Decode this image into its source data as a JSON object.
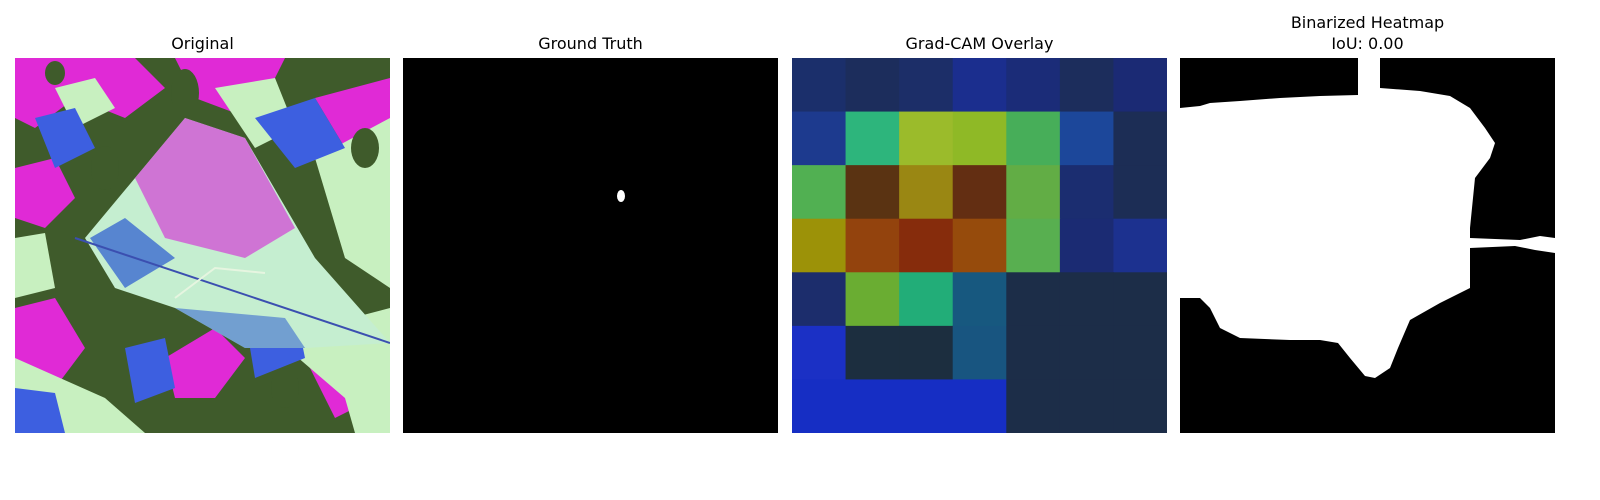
{
  "panels": [
    {
      "id": "original",
      "title": "Original"
    },
    {
      "id": "ground_truth",
      "title": "Ground Truth"
    },
    {
      "id": "gradcam",
      "title": "Grad-CAM Overlay",
      "grid_colors": [
        [
          "#1b2f6b",
          "#1c2d5c",
          "#1c2e68",
          "#1b2e8e",
          "#1b2c78",
          "#1c2d5c",
          "#1b2a74"
        ],
        [
          "#1d3a8e",
          "#2db57c",
          "#9bbb2b",
          "#8fb926",
          "#47ae59",
          "#1c479a",
          "#1c2d55"
        ],
        [
          "#51b052",
          "#5a3312",
          "#9a8713",
          "#632e12",
          "#62ad45",
          "#1b2d70",
          "#1c2d55"
        ],
        [
          "#9c9208",
          "#93430d",
          "#862c0c",
          "#964b0c",
          "#58af50",
          "#1b2b73",
          "#1c318f"
        ],
        [
          "#1c2d6c",
          "#6aad32",
          "#22ad78",
          "#17587f",
          "#1c2d48",
          "#1c2d48",
          "#1c2d48"
        ],
        [
          "#1b30c5",
          "#1c2e3f",
          "#1c2e3f",
          "#185580",
          "#1c2d48",
          "#1c2d48",
          "#1c2d48"
        ],
        [
          "#162ec4",
          "#162ec4",
          "#162ec4",
          "#162ec4",
          "#1c2d48",
          "#1c2d48",
          "#1c2d48"
        ]
      ]
    },
    {
      "id": "binarized",
      "title": "Binarized Heatmap",
      "subtitle": "IoU: 0.00"
    }
  ],
  "iou": 0.0
}
